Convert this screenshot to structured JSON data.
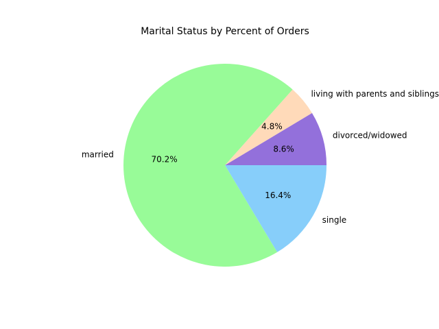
{
  "chart_data": {
    "type": "pie",
    "title": "Marital Status by Percent of Orders",
    "slices": [
      {
        "label": "divorced/widowed",
        "percent_label": "8.6%",
        "value": 8.6,
        "color": "#9370DB"
      },
      {
        "label": "living with parents and siblings",
        "percent_label": "4.8%",
        "value": 4.8,
        "color": "#FFDAB9"
      },
      {
        "label": "married",
        "percent_label": "70.2%",
        "value": 70.2,
        "color": "#98FB98"
      },
      {
        "label": "single",
        "percent_label": "16.4%",
        "value": 16.4,
        "color": "#87CEFA"
      }
    ],
    "start_angle_deg": 0,
    "direction": "counterclockwise"
  }
}
